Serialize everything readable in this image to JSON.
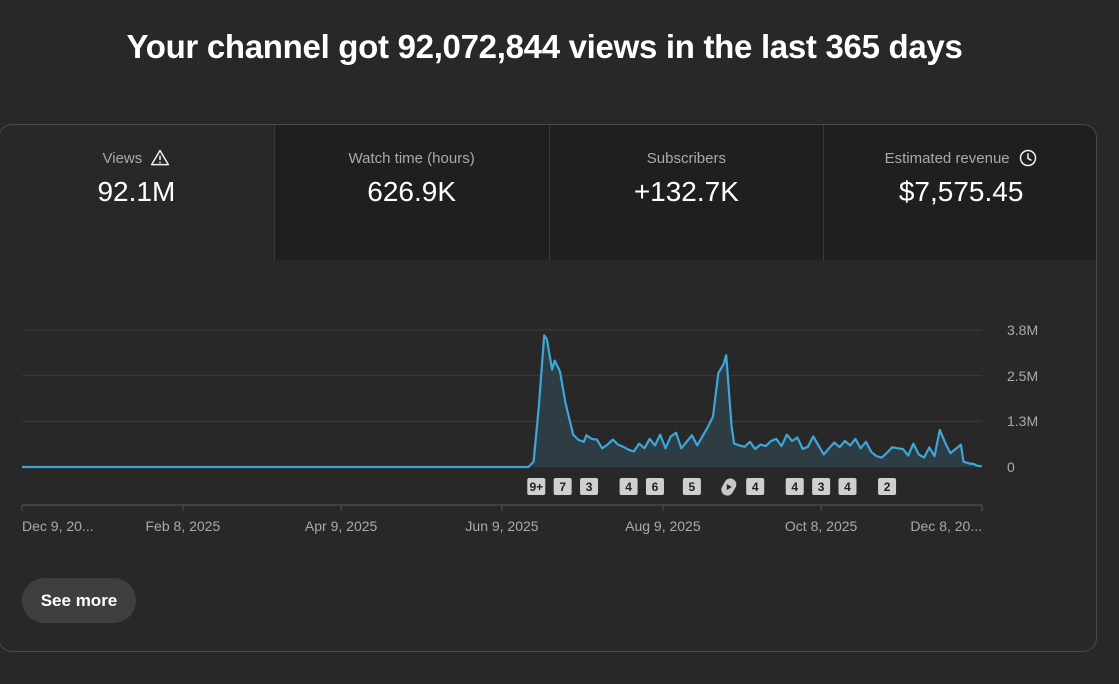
{
  "headline": "Your channel got 92,072,844 views in the last 365 days",
  "tabs": [
    {
      "label": "Views",
      "value": "92.1M",
      "icon": "warning-icon",
      "active": true
    },
    {
      "label": "Watch time (hours)",
      "value": "626.9K",
      "icon": null,
      "active": false
    },
    {
      "label": "Subscribers",
      "value": "+132.7K",
      "icon": null,
      "active": false
    },
    {
      "label": "Estimated revenue",
      "value": "$7,575.45",
      "icon": "clock-icon",
      "active": false
    }
  ],
  "see_more_label": "See more",
  "colors": {
    "line": "#3ea6d8",
    "area": "#2f3f48",
    "grid": "#3d3d3d",
    "axis_text": "#aaaaaa",
    "background": "#282828"
  },
  "chart_data": {
    "type": "area",
    "ylim": [
      0,
      3800000
    ],
    "y_ticks": [
      {
        "value": 0,
        "label": "0"
      },
      {
        "value": 1270000,
        "label": "1.3M"
      },
      {
        "value": 2530000,
        "label": "2.5M"
      },
      {
        "value": 3800000,
        "label": "3.8M"
      }
    ],
    "x_domain": [
      "2024-12-09",
      "2025-12-08"
    ],
    "x_ticks": [
      {
        "date": "2024-12-09",
        "label": "Dec 9, 20..."
      },
      {
        "date": "2025-02-08",
        "label": "Feb 8, 2025"
      },
      {
        "date": "2025-04-09",
        "label": "Apr 9, 2025"
      },
      {
        "date": "2025-06-09",
        "label": "Jun 9, 2025"
      },
      {
        "date": "2025-08-09",
        "label": "Aug 9, 2025"
      },
      {
        "date": "2025-10-08",
        "label": "Oct 8, 2025"
      },
      {
        "date": "2025-12-08",
        "label": "Dec 8, 20..."
      }
    ],
    "series": [
      {
        "points": [
          [
            "2024-12-09",
            0
          ],
          [
            "2025-06-19",
            0
          ],
          [
            "2025-06-21",
            150000
          ],
          [
            "2025-06-23",
            1700000
          ],
          [
            "2025-06-25",
            3650000
          ],
          [
            "2025-06-26",
            3550000
          ],
          [
            "2025-06-28",
            2700000
          ],
          [
            "2025-06-29",
            2950000
          ],
          [
            "2025-07-01",
            2650000
          ],
          [
            "2025-07-03",
            1800000
          ],
          [
            "2025-07-04",
            1500000
          ],
          [
            "2025-07-06",
            900000
          ],
          [
            "2025-07-08",
            750000
          ],
          [
            "2025-07-10",
            700000
          ],
          [
            "2025-07-11",
            880000
          ],
          [
            "2025-07-13",
            780000
          ],
          [
            "2025-07-15",
            760000
          ],
          [
            "2025-07-17",
            520000
          ],
          [
            "2025-07-19",
            620000
          ],
          [
            "2025-07-21",
            760000
          ],
          [
            "2025-07-23",
            620000
          ],
          [
            "2025-07-25",
            560000
          ],
          [
            "2025-07-27",
            480000
          ],
          [
            "2025-07-29",
            430000
          ],
          [
            "2025-07-31",
            650000
          ],
          [
            "2025-08-02",
            520000
          ],
          [
            "2025-08-04",
            780000
          ],
          [
            "2025-08-06",
            600000
          ],
          [
            "2025-08-08",
            900000
          ],
          [
            "2025-08-10",
            520000
          ],
          [
            "2025-08-12",
            850000
          ],
          [
            "2025-08-14",
            950000
          ],
          [
            "2025-08-16",
            520000
          ],
          [
            "2025-08-18",
            700000
          ],
          [
            "2025-08-20",
            880000
          ],
          [
            "2025-08-22",
            600000
          ],
          [
            "2025-08-24",
            850000
          ],
          [
            "2025-08-26",
            1100000
          ],
          [
            "2025-08-28",
            1400000
          ],
          [
            "2025-08-30",
            2600000
          ],
          [
            "2025-09-01",
            2850000
          ],
          [
            "2025-09-02",
            3100000
          ],
          [
            "2025-09-04",
            1150000
          ],
          [
            "2025-09-05",
            650000
          ],
          [
            "2025-09-07",
            600000
          ],
          [
            "2025-09-09",
            560000
          ],
          [
            "2025-09-11",
            700000
          ],
          [
            "2025-09-13",
            500000
          ],
          [
            "2025-09-15",
            620000
          ],
          [
            "2025-09-17",
            580000
          ],
          [
            "2025-09-19",
            720000
          ],
          [
            "2025-09-21",
            780000
          ],
          [
            "2025-09-23",
            580000
          ],
          [
            "2025-09-25",
            900000
          ],
          [
            "2025-09-27",
            720000
          ],
          [
            "2025-09-29",
            820000
          ],
          [
            "2025-10-01",
            500000
          ],
          [
            "2025-10-03",
            560000
          ],
          [
            "2025-10-05",
            850000
          ],
          [
            "2025-10-07",
            600000
          ],
          [
            "2025-10-09",
            350000
          ],
          [
            "2025-10-11",
            520000
          ],
          [
            "2025-10-13",
            680000
          ],
          [
            "2025-10-15",
            550000
          ],
          [
            "2025-10-17",
            720000
          ],
          [
            "2025-10-19",
            600000
          ],
          [
            "2025-10-21",
            780000
          ],
          [
            "2025-10-23",
            520000
          ],
          [
            "2025-10-25",
            700000
          ],
          [
            "2025-10-27",
            420000
          ],
          [
            "2025-10-29",
            300000
          ],
          [
            "2025-10-31",
            260000
          ],
          [
            "2025-11-02",
            400000
          ],
          [
            "2025-11-04",
            550000
          ],
          [
            "2025-11-06",
            520000
          ],
          [
            "2025-11-08",
            500000
          ],
          [
            "2025-11-10",
            320000
          ],
          [
            "2025-11-12",
            650000
          ],
          [
            "2025-11-14",
            350000
          ],
          [
            "2025-11-16",
            260000
          ],
          [
            "2025-11-18",
            540000
          ],
          [
            "2025-11-20",
            300000
          ],
          [
            "2025-11-22",
            1030000
          ],
          [
            "2025-11-24",
            680000
          ],
          [
            "2025-11-26",
            380000
          ],
          [
            "2025-11-28",
            500000
          ],
          [
            "2025-11-30",
            620000
          ],
          [
            "2025-12-01",
            150000
          ],
          [
            "2025-12-03",
            100000
          ],
          [
            "2025-12-05",
            80000
          ],
          [
            "2025-12-06",
            40000
          ],
          [
            "2025-12-08",
            20000
          ]
        ]
      }
    ],
    "markers": [
      {
        "date": "2025-06-22",
        "label": "9+",
        "kind": "count"
      },
      {
        "date": "2025-07-02",
        "label": "7",
        "kind": "count"
      },
      {
        "date": "2025-07-12",
        "label": "3",
        "kind": "count"
      },
      {
        "date": "2025-07-27",
        "label": "4",
        "kind": "count"
      },
      {
        "date": "2025-08-06",
        "label": "6",
        "kind": "count"
      },
      {
        "date": "2025-08-20",
        "label": "5",
        "kind": "count"
      },
      {
        "date": "2025-09-03",
        "label": "",
        "kind": "shorts-icon"
      },
      {
        "date": "2025-09-13",
        "label": "4",
        "kind": "count"
      },
      {
        "date": "2025-09-28",
        "label": "4",
        "kind": "count"
      },
      {
        "date": "2025-10-08",
        "label": "3",
        "kind": "count"
      },
      {
        "date": "2025-10-18",
        "label": "4",
        "kind": "count"
      },
      {
        "date": "2025-11-02",
        "label": "2",
        "kind": "count"
      }
    ]
  }
}
